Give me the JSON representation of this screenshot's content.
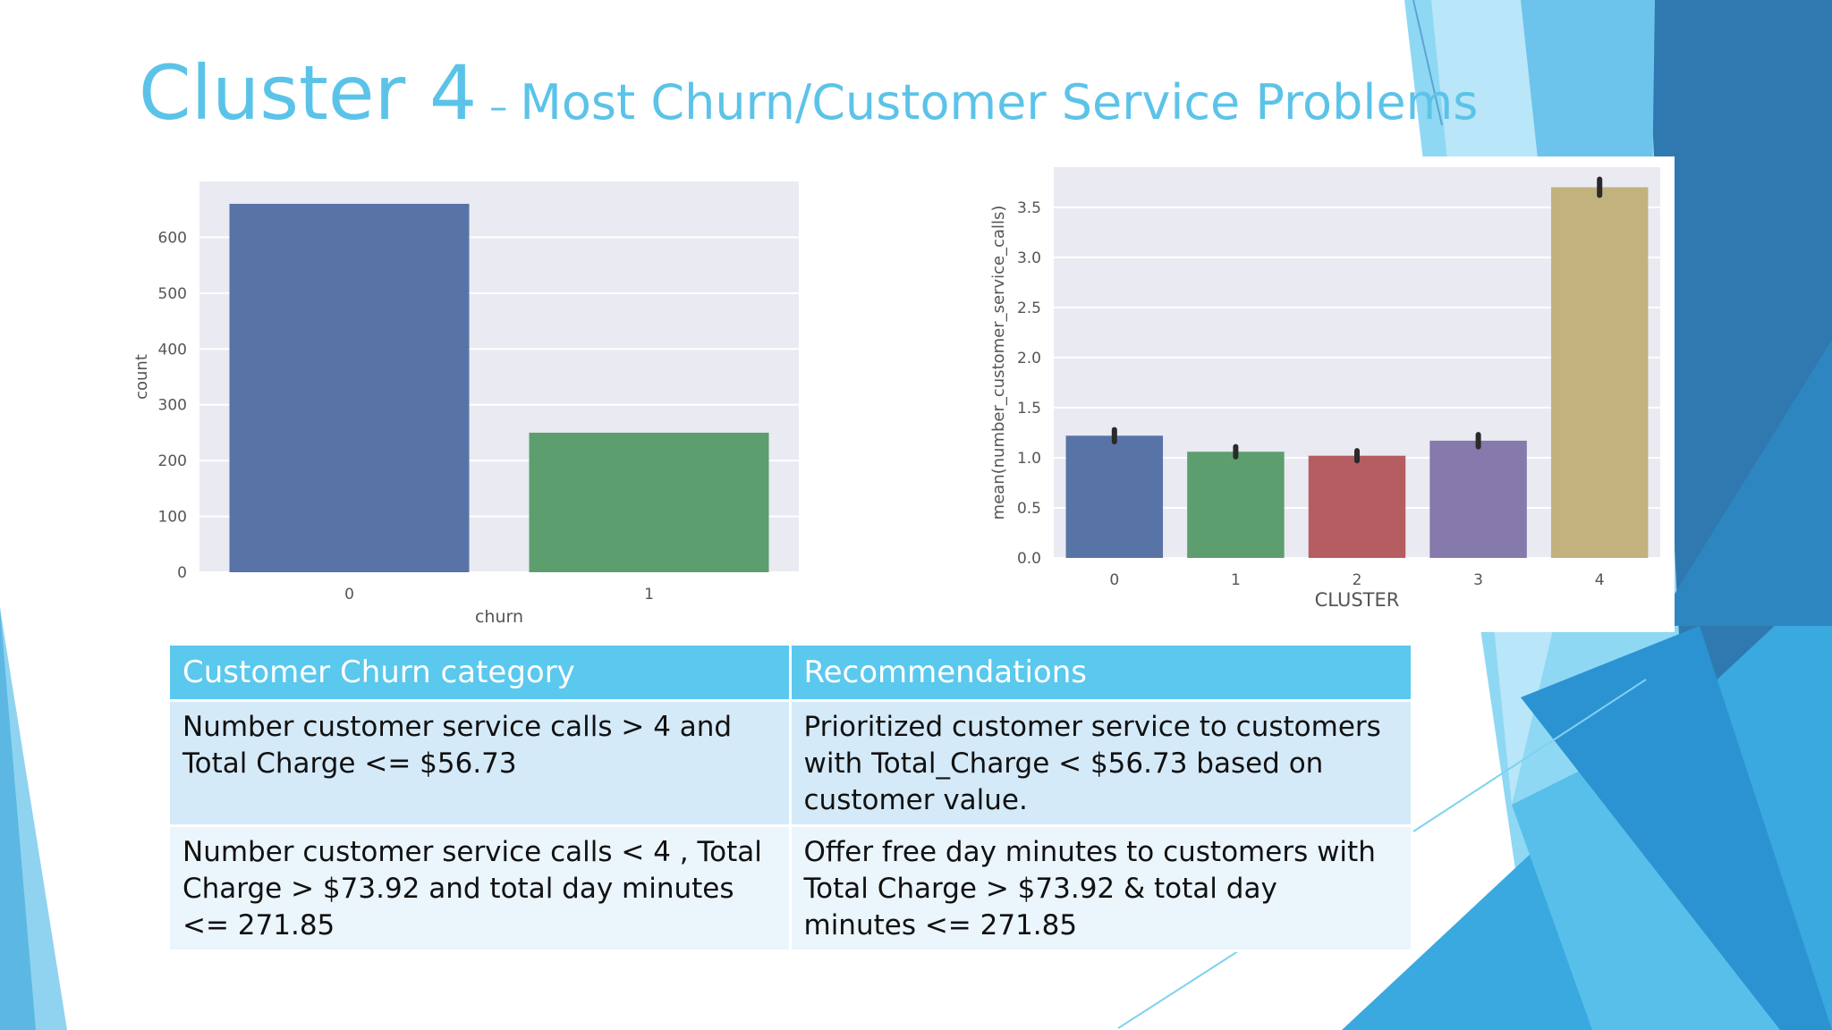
{
  "slide": {
    "title_main": "Cluster 4",
    "title_dash": "–",
    "title_sub": "Most Churn/Customer Service Problems"
  },
  "colors": {
    "title": "#5cc3e8",
    "header": "#5bc8ee",
    "row1": "#d5eaf8",
    "row2": "#ebf5fc",
    "plot_bg": "#eaeaf2"
  },
  "chart_data": [
    {
      "type": "bar",
      "categories": [
        "0",
        "1"
      ],
      "values": [
        660,
        250
      ],
      "colors": [
        "#5873a6",
        "#5d9e6f"
      ],
      "xlabel": "churn",
      "ylabel": "count",
      "ylim": [
        0,
        700
      ],
      "yticks": [
        0,
        100,
        200,
        300,
        400,
        500,
        600
      ],
      "grid": true
    },
    {
      "type": "bar",
      "categories": [
        "0",
        "1",
        "2",
        "3",
        "4"
      ],
      "values": [
        1.22,
        1.06,
        1.02,
        1.17,
        3.7
      ],
      "errors": [
        0.06,
        0.05,
        0.05,
        0.06,
        0.08
      ],
      "colors": [
        "#5873a6",
        "#5d9e6f",
        "#b55d60",
        "#857aab",
        "#c2b27d"
      ],
      "xlabel": "CLUSTER",
      "ylabel": "mean(number_customer_service_calls)",
      "ylim": [
        0,
        3.9
      ],
      "yticks": [
        "0.0",
        "0.5",
        "1.0",
        "1.5",
        "2.0",
        "2.5",
        "3.0",
        "3.5"
      ],
      "grid": true
    }
  ],
  "table": {
    "headers": [
      "Customer Churn category",
      "Recommendations"
    ],
    "rows": [
      [
        "Number customer service calls > 4 and Total Charge <= $56.73",
        "Prioritized customer service to customers with Total_Charge < $56.73 based on customer value."
      ],
      [
        "Number customer service calls < 4 , Total Charge > $73.92 and total day minutes <= 271.85",
        "Offer free day minutes to customers with Total Charge > $73.92 & total day minutes <= 271.85"
      ]
    ]
  }
}
